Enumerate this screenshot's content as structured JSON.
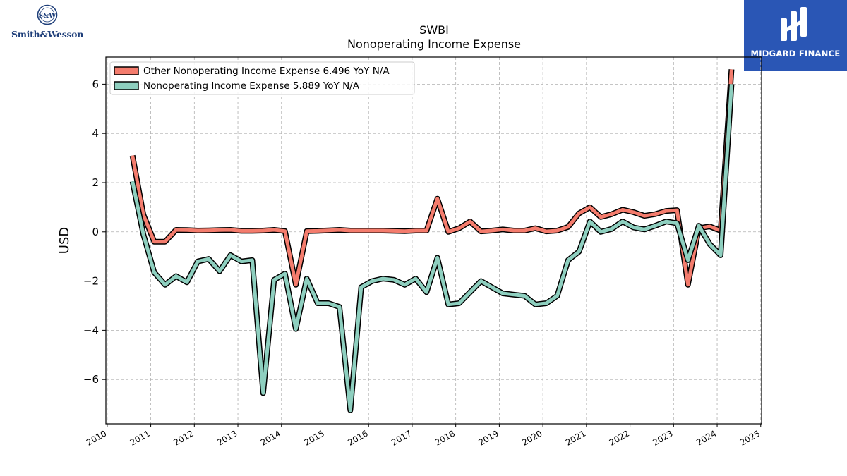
{
  "branding": {
    "left_logo_text": "Smith&Wesson",
    "left_logo_mark": "S&W",
    "right_logo_text": "MIDGARD FINANCE"
  },
  "chart_data": {
    "type": "line",
    "title": "SWBI",
    "subtitle": "Nonoperating Income Expense",
    "xlabel": "",
    "ylabel": "USD",
    "xlim": [
      2009.97,
      2025.02
    ],
    "ylim": [
      -7.8,
      7.1
    ],
    "xticks": [
      2010,
      2011,
      2012,
      2013,
      2014,
      2015,
      2016,
      2017,
      2018,
      2019,
      2020,
      2021,
      2022,
      2023,
      2024,
      2025
    ],
    "xtick_labels": [
      "2010",
      "2011",
      "2012",
      "2013",
      "2014",
      "2015",
      "2016",
      "2017",
      "2018",
      "2019",
      "2020",
      "2021",
      "2022",
      "2023",
      "2024",
      "2025"
    ],
    "yticks": [
      -6,
      -4,
      -2,
      0,
      2,
      4,
      6
    ],
    "ytick_labels": [
      "−6",
      "−4",
      "−2",
      "0",
      "2",
      "4",
      "6"
    ],
    "grid": true,
    "legend_position": "top-left",
    "series": [
      {
        "name": "Other Nonoperating Income Expense  6.496 YoY N/A",
        "color": "#f47c6d",
        "points": [
          [
            2010.58,
            3.1
          ],
          [
            2010.83,
            0.7
          ],
          [
            2011.08,
            -0.4
          ],
          [
            2011.33,
            -0.4
          ],
          [
            2011.58,
            0.08
          ],
          [
            2011.83,
            0.07
          ],
          [
            2012.08,
            0.05
          ],
          [
            2012.33,
            0.06
          ],
          [
            2012.58,
            0.07
          ],
          [
            2012.83,
            0.08
          ],
          [
            2013.08,
            0.04
          ],
          [
            2013.33,
            0.04
          ],
          [
            2013.58,
            0.05
          ],
          [
            2013.83,
            0.08
          ],
          [
            2014.08,
            0.03
          ],
          [
            2014.33,
            -2.15
          ],
          [
            2014.58,
            0.03
          ],
          [
            2014.83,
            0.04
          ],
          [
            2015.08,
            0.06
          ],
          [
            2015.33,
            0.08
          ],
          [
            2015.58,
            0.05
          ],
          [
            2015.83,
            0.05
          ],
          [
            2016.08,
            0.05
          ],
          [
            2016.33,
            0.05
          ],
          [
            2016.58,
            0.04
          ],
          [
            2016.83,
            0.03
          ],
          [
            2017.08,
            0.05
          ],
          [
            2017.33,
            0.05
          ],
          [
            2017.58,
            1.35
          ],
          [
            2017.83,
            0.0
          ],
          [
            2018.08,
            0.15
          ],
          [
            2018.33,
            0.42
          ],
          [
            2018.58,
            0.02
          ],
          [
            2018.83,
            0.05
          ],
          [
            2019.08,
            0.1
          ],
          [
            2019.33,
            0.05
          ],
          [
            2019.58,
            0.05
          ],
          [
            2019.83,
            0.15
          ],
          [
            2020.08,
            0.02
          ],
          [
            2020.33,
            0.05
          ],
          [
            2020.58,
            0.2
          ],
          [
            2020.83,
            0.75
          ],
          [
            2021.08,
            1.0
          ],
          [
            2021.33,
            0.6
          ],
          [
            2021.58,
            0.72
          ],
          [
            2021.83,
            0.9
          ],
          [
            2022.08,
            0.8
          ],
          [
            2022.33,
            0.65
          ],
          [
            2022.58,
            0.72
          ],
          [
            2022.83,
            0.85
          ],
          [
            2023.08,
            0.88
          ],
          [
            2023.33,
            -2.15
          ],
          [
            2023.58,
            0.15
          ],
          [
            2023.83,
            0.22
          ],
          [
            2024.08,
            0.05
          ],
          [
            2024.33,
            6.6
          ]
        ]
      },
      {
        "name": "Nonoperating Income Expense  5.889 YoY N/A",
        "color": "#8ecfbf",
        "points": [
          [
            2010.58,
            2.05
          ],
          [
            2010.83,
            -0.1
          ],
          [
            2011.08,
            -1.65
          ],
          [
            2011.33,
            -2.15
          ],
          [
            2011.58,
            -1.8
          ],
          [
            2011.83,
            -2.05
          ],
          [
            2012.08,
            -1.2
          ],
          [
            2012.33,
            -1.1
          ],
          [
            2012.58,
            -1.6
          ],
          [
            2012.83,
            -0.95
          ],
          [
            2013.08,
            -1.2
          ],
          [
            2013.33,
            -1.15
          ],
          [
            2013.58,
            -6.55
          ],
          [
            2013.83,
            -1.95
          ],
          [
            2014.08,
            -1.7
          ],
          [
            2014.33,
            -3.95
          ],
          [
            2014.58,
            -1.9
          ],
          [
            2014.83,
            -2.9
          ],
          [
            2015.08,
            -2.9
          ],
          [
            2015.33,
            -3.05
          ],
          [
            2015.58,
            -7.25
          ],
          [
            2015.83,
            -2.25
          ],
          [
            2016.08,
            -2.0
          ],
          [
            2016.33,
            -1.9
          ],
          [
            2016.58,
            -1.95
          ],
          [
            2016.83,
            -2.15
          ],
          [
            2017.08,
            -1.9
          ],
          [
            2017.33,
            -2.45
          ],
          [
            2017.58,
            -1.05
          ],
          [
            2017.83,
            -2.95
          ],
          [
            2018.08,
            -2.9
          ],
          [
            2018.33,
            -2.45
          ],
          [
            2018.58,
            -2.0
          ],
          [
            2018.83,
            -2.25
          ],
          [
            2019.08,
            -2.5
          ],
          [
            2019.33,
            -2.55
          ],
          [
            2019.58,
            -2.6
          ],
          [
            2019.83,
            -2.95
          ],
          [
            2020.08,
            -2.9
          ],
          [
            2020.33,
            -2.6
          ],
          [
            2020.58,
            -1.15
          ],
          [
            2020.83,
            -0.8
          ],
          [
            2021.08,
            0.42
          ],
          [
            2021.33,
            0.0
          ],
          [
            2021.58,
            0.12
          ],
          [
            2021.83,
            0.42
          ],
          [
            2022.08,
            0.18
          ],
          [
            2022.33,
            0.1
          ],
          [
            2022.58,
            0.25
          ],
          [
            2022.83,
            0.42
          ],
          [
            2023.08,
            0.35
          ],
          [
            2023.33,
            -1.15
          ],
          [
            2023.58,
            0.25
          ],
          [
            2023.83,
            -0.5
          ],
          [
            2024.08,
            -0.95
          ],
          [
            2024.33,
            6.0
          ]
        ]
      }
    ]
  }
}
